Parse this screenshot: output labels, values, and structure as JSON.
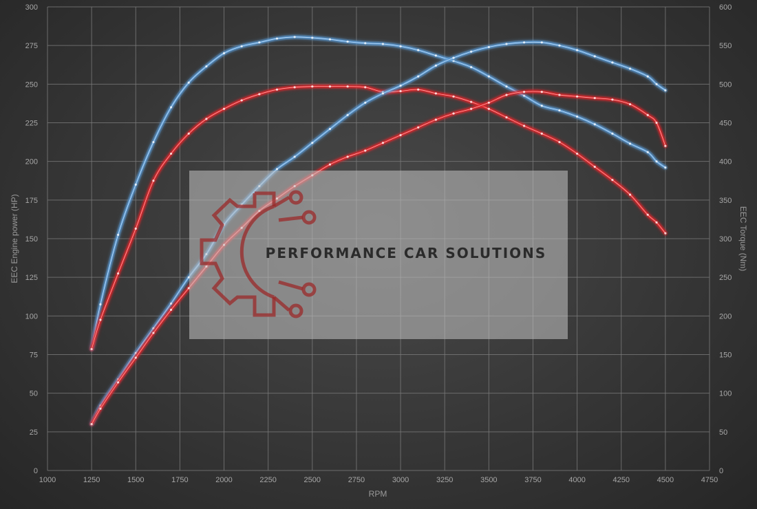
{
  "chart_data": {
    "type": "line",
    "xlabel": "RPM",
    "ylabel": "EEC Engine power (HP)",
    "y2label": "EEC Torque (Nm)",
    "xlim": [
      1000,
      4750
    ],
    "ylim": [
      0,
      300
    ],
    "y2lim": [
      0,
      600
    ],
    "x_ticks": [
      1000,
      1250,
      1500,
      1750,
      2000,
      2250,
      2500,
      2750,
      3000,
      3250,
      3500,
      3750,
      4000,
      4250,
      4500,
      4750
    ],
    "y_ticks": [
      0,
      25,
      50,
      75,
      100,
      125,
      150,
      175,
      200,
      225,
      250,
      275,
      300
    ],
    "y2_ticks": [
      0,
      50,
      100,
      150,
      200,
      250,
      300,
      350,
      400,
      450,
      500,
      550,
      600
    ],
    "grid": true,
    "colors": {
      "blue": "#5b9bd5",
      "red": "#e0262b",
      "grid": "#7a7a7a",
      "background": "#3a3a3a"
    },
    "series": [
      {
        "color": "blue",
        "axis": "right",
        "x": [
          1250,
          1300,
          1400,
          1500,
          1600,
          1700,
          1800,
          1900,
          2000,
          2100,
          2200,
          2300,
          2400,
          2500,
          2600,
          2700,
          2800,
          2900,
          3000,
          3100,
          3200,
          3300,
          3400,
          3500,
          3600,
          3700,
          3800,
          3900,
          4000,
          4100,
          4200,
          4300,
          4400,
          4450,
          4500
        ],
        "y": [
          157,
          215,
          305,
          370,
          425,
          470,
          502,
          523,
          540,
          549,
          554,
          559,
          561,
          560,
          558,
          555,
          553,
          552,
          549,
          544,
          537,
          530,
          522,
          510,
          497,
          485,
          472,
          466,
          458,
          448,
          436,
          423,
          412,
          400,
          392
        ]
      },
      {
        "color": "red",
        "axis": "right",
        "x": [
          1250,
          1300,
          1400,
          1500,
          1600,
          1700,
          1800,
          1900,
          2000,
          2100,
          2200,
          2300,
          2400,
          2500,
          2600,
          2700,
          2800,
          2900,
          3000,
          3100,
          3200,
          3300,
          3400,
          3500,
          3600,
          3700,
          3800,
          3900,
          4000,
          4100,
          4200,
          4300,
          4400,
          4450,
          4500
        ],
        "y": [
          157,
          195,
          255,
          313,
          375,
          410,
          436,
          455,
          468,
          479,
          487,
          493,
          496,
          497,
          497,
          497,
          496,
          490,
          491,
          493,
          488,
          484,
          477,
          468,
          457,
          446,
          436,
          425,
          410,
          393,
          376,
          357,
          331,
          321,
          307
        ]
      },
      {
        "color": "blue",
        "axis": "left",
        "x": [
          1250,
          1300,
          1400,
          1500,
          1600,
          1700,
          1800,
          1900,
          2000,
          2100,
          2200,
          2300,
          2400,
          2500,
          2600,
          2700,
          2800,
          2900,
          3000,
          3100,
          3200,
          3300,
          3400,
          3500,
          3600,
          3700,
          3800,
          3900,
          4000,
          4100,
          4200,
          4300,
          4400,
          4450,
          4500
        ],
        "y": [
          30,
          42,
          59,
          76,
          92,
          108,
          125,
          140,
          159,
          172,
          184,
          195,
          203,
          212,
          221,
          230,
          238,
          244,
          249,
          255,
          262,
          267,
          271,
          274,
          276,
          277,
          277,
          275,
          272,
          268,
          264,
          260,
          255,
          250,
          246
        ]
      },
      {
        "color": "red",
        "axis": "left",
        "x": [
          1250,
          1300,
          1400,
          1500,
          1600,
          1700,
          1800,
          1900,
          2000,
          2100,
          2200,
          2300,
          2400,
          2500,
          2600,
          2700,
          2800,
          2900,
          3000,
          3100,
          3200,
          3300,
          3400,
          3500,
          3600,
          3700,
          3800,
          3900,
          4000,
          4100,
          4200,
          4300,
          4400,
          4450,
          4500
        ],
        "y": [
          30,
          40,
          57,
          73,
          89,
          104,
          118,
          132,
          146,
          157,
          168,
          176,
          184,
          191,
          198,
          203,
          207,
          212,
          217,
          222,
          227,
          231,
          234,
          238,
          243,
          245,
          245,
          243,
          242,
          241,
          240,
          237,
          230,
          225,
          210
        ]
      }
    ]
  },
  "watermark": {
    "text": "PERFORMANCE CAR SOLUTIONS",
    "logo_icon": "gear-circuit-icon"
  }
}
